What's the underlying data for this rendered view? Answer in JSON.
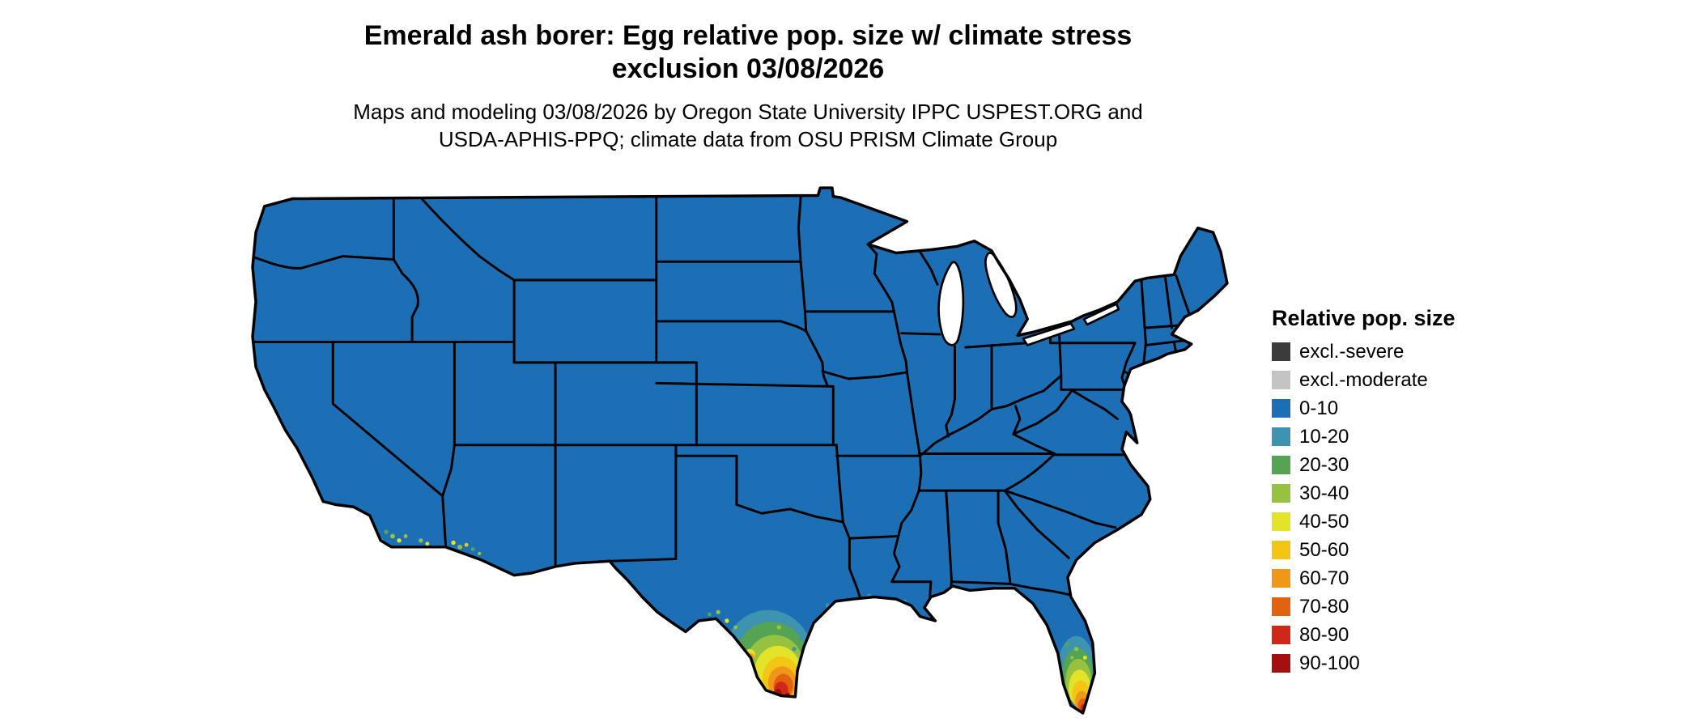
{
  "title": {
    "line1": "Emerald ash borer: Egg relative pop. size w/ climate stress",
    "line2": "exclusion 03/08/2026"
  },
  "subtitle": {
    "line1": "Maps and modeling 03/08/2026 by Oregon State University IPPC USPEST.ORG and",
    "line2": "USDA-APHIS-PPQ; climate data from OSU PRISM Climate Group"
  },
  "legend": {
    "title": "Relative pop. size",
    "items": [
      {
        "label": "excl.-severe",
        "color": "#3b3b3b"
      },
      {
        "label": "excl.-moderate",
        "color": "#c4c4c4"
      },
      {
        "label": "0-10",
        "color": "#1d6fb5"
      },
      {
        "label": "10-20",
        "color": "#3d93b0"
      },
      {
        "label": "20-30",
        "color": "#55a453"
      },
      {
        "label": "30-40",
        "color": "#97c23f"
      },
      {
        "label": "40-50",
        "color": "#e3e32a"
      },
      {
        "label": "50-60",
        "color": "#f3c514"
      },
      {
        "label": "60-70",
        "color": "#ef9718"
      },
      {
        "label": "70-80",
        "color": "#e2620f"
      },
      {
        "label": "80-90",
        "color": "#d02818"
      },
      {
        "label": "90-100",
        "color": "#a50f0f"
      }
    ]
  },
  "map": {
    "land_fill": "#1d6fb5",
    "border_color": "#000000",
    "water_fill": "#ffffff"
  }
}
